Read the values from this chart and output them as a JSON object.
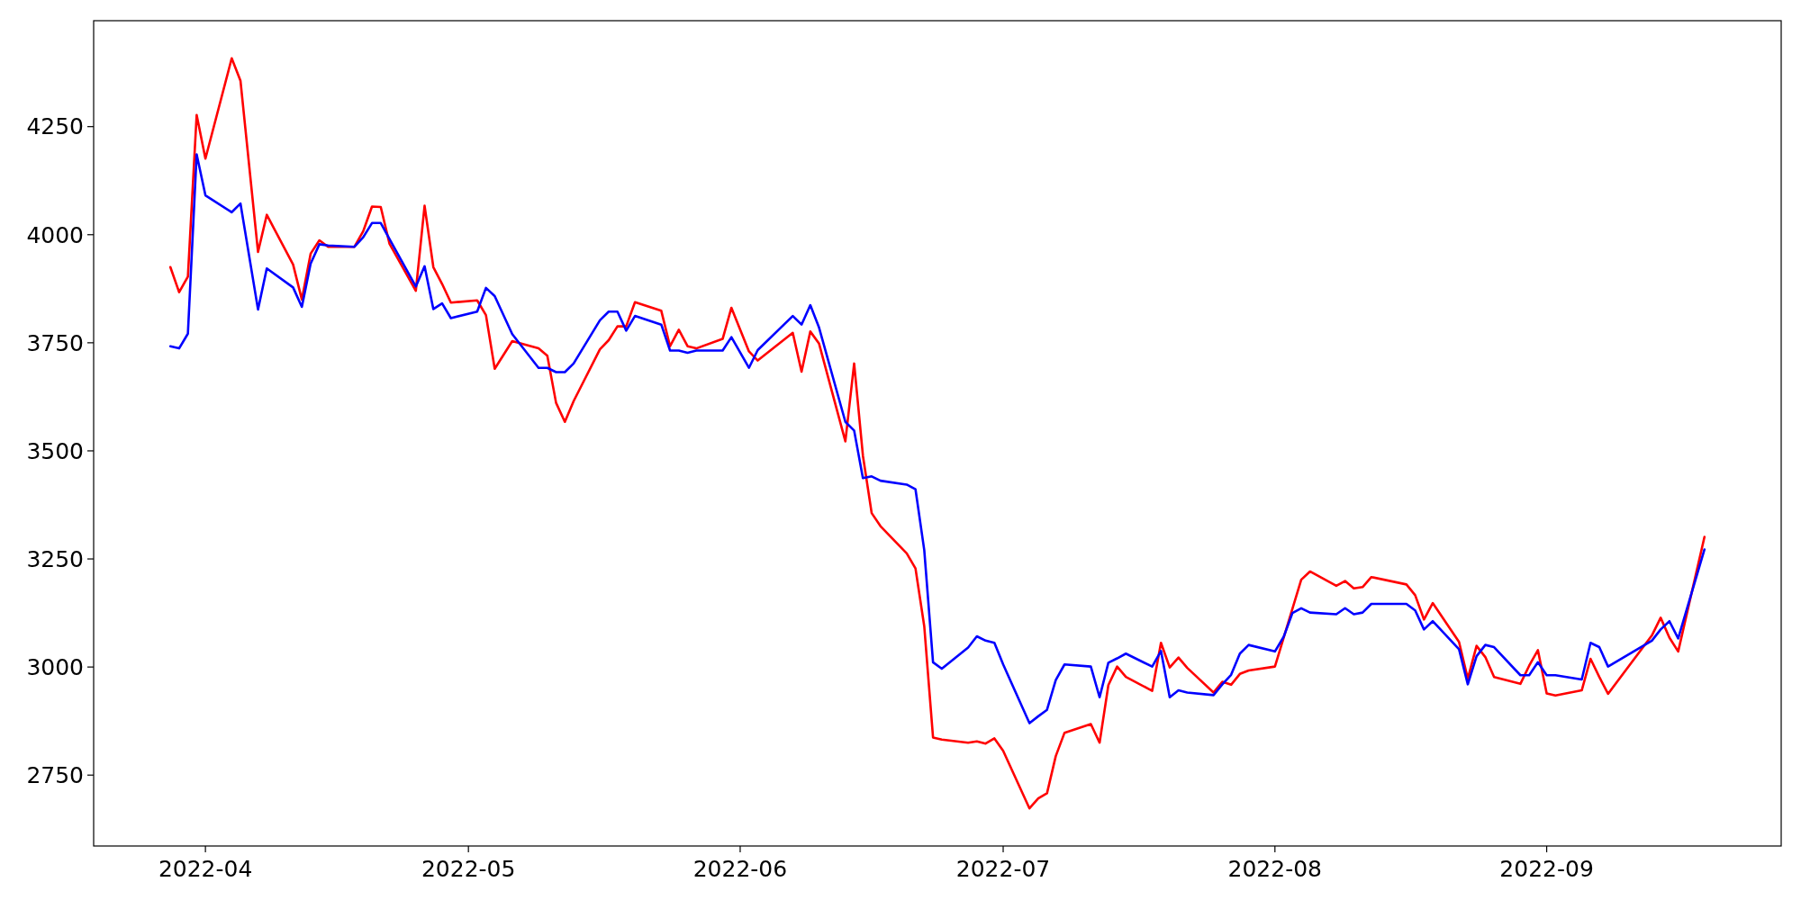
{
  "chart_data": {
    "type": "line",
    "xlim": [
      "2022-03-19T06:00",
      "2022-09-27T18:00"
    ],
    "xticks": [
      "2022-04",
      "2022-05",
      "2022-06",
      "2022-07",
      "2022-08",
      "2022-09"
    ],
    "ylim": [
      2586,
      4495
    ],
    "yticks": [
      2750,
      3000,
      3250,
      3500,
      3750,
      4000,
      4250
    ],
    "grid": false,
    "marker": "none",
    "line_style": "solid",
    "series": [
      {
        "color": "#ff0000",
        "x": [
          "2022-03-28",
          "2022-03-29",
          "2022-03-30",
          "2022-03-31",
          "2022-04-01",
          "2022-04-04",
          "2022-04-05",
          "2022-04-07",
          "2022-04-08",
          "2022-04-11",
          "2022-04-12",
          "2022-04-13",
          "2022-04-14",
          "2022-04-15",
          "2022-04-18",
          "2022-04-19",
          "2022-04-20",
          "2022-04-21",
          "2022-04-22",
          "2022-04-25",
          "2022-04-26",
          "2022-04-27",
          "2022-04-28",
          "2022-04-29",
          "2022-05-02",
          "2022-05-03",
          "2022-05-04",
          "2022-05-06",
          "2022-05-09",
          "2022-05-10",
          "2022-05-11",
          "2022-05-12",
          "2022-05-13",
          "2022-05-16",
          "2022-05-17",
          "2022-05-18",
          "2022-05-19",
          "2022-05-20",
          "2022-05-23",
          "2022-05-24",
          "2022-05-25",
          "2022-05-26",
          "2022-05-27",
          "2022-05-30",
          "2022-05-31",
          "2022-06-02",
          "2022-06-03",
          "2022-06-07",
          "2022-06-08",
          "2022-06-09",
          "2022-06-10",
          "2022-06-13",
          "2022-06-14",
          "2022-06-15",
          "2022-06-16",
          "2022-06-17",
          "2022-06-20",
          "2022-06-21",
          "2022-06-22",
          "2022-06-23",
          "2022-06-24",
          "2022-06-27",
          "2022-06-28",
          "2022-06-29",
          "2022-06-30",
          "2022-07-01",
          "2022-07-04",
          "2022-07-05",
          "2022-07-06",
          "2022-07-07",
          "2022-07-08",
          "2022-07-11",
          "2022-07-12",
          "2022-07-13",
          "2022-07-14",
          "2022-07-15",
          "2022-07-18",
          "2022-07-19",
          "2022-07-20",
          "2022-07-21",
          "2022-07-22",
          "2022-07-25",
          "2022-07-26",
          "2022-07-27",
          "2022-07-28",
          "2022-07-29",
          "2022-08-01",
          "2022-08-04",
          "2022-08-05",
          "2022-08-08",
          "2022-08-09",
          "2022-08-10",
          "2022-08-11",
          "2022-08-12",
          "2022-08-16",
          "2022-08-17",
          "2022-08-18",
          "2022-08-19",
          "2022-08-22",
          "2022-08-23",
          "2022-08-24",
          "2022-08-25",
          "2022-08-26",
          "2022-08-29",
          "2022-08-30",
          "2022-08-31",
          "2022-09-01",
          "2022-09-02",
          "2022-09-05",
          "2022-09-06",
          "2022-09-07",
          "2022-09-08",
          "2022-09-13",
          "2022-09-14",
          "2022-09-15",
          "2022-09-16",
          "2022-09-19"
        ],
        "values": [
          3925,
          3867,
          3903,
          4277,
          4176,
          4408,
          4356,
          3960,
          4046,
          3931,
          3850,
          3956,
          3987,
          3972,
          3972,
          4008,
          4065,
          4064,
          3979,
          3870,
          4067,
          3925,
          3886,
          3843,
          3848,
          3814,
          3690,
          3754,
          3737,
          3720,
          3611,
          3567,
          3615,
          3735,
          3756,
          3788,
          3788,
          3844,
          3824,
          3742,
          3780,
          3742,
          3737,
          3759,
          3831,
          3730,
          3709,
          3773,
          3683,
          3776,
          3748,
          3522,
          3702,
          3489,
          3356,
          3326,
          3263,
          3228,
          3094,
          2837,
          2832,
          2825,
          2828,
          2823,
          2835,
          2806,
          2673,
          2696,
          2708,
          2794,
          2848,
          2868,
          2825,
          2958,
          3001,
          2977,
          2945,
          3056,
          2999,
          3022,
          2998,
          2941,
          2966,
          2959,
          2984,
          2992,
          3001,
          3202,
          3221,
          3188,
          3199,
          3182,
          3185,
          3208,
          3191,
          3166,
          3110,
          3148,
          3058,
          2973,
          3049,
          3023,
          2977,
          2961,
          3003,
          3039,
          2939,
          2934,
          2946,
          3019,
          2977,
          2938,
          3073,
          3114,
          3068,
          3036,
          3301
        ]
      },
      {
        "color": "#0000ff",
        "x": [
          "2022-03-28",
          "2022-03-29",
          "2022-03-30",
          "2022-03-31",
          "2022-04-01",
          "2022-04-04",
          "2022-04-05",
          "2022-04-07",
          "2022-04-08",
          "2022-04-11",
          "2022-04-12",
          "2022-04-13",
          "2022-04-14",
          "2022-04-15",
          "2022-04-18",
          "2022-04-19",
          "2022-04-20",
          "2022-04-21",
          "2022-04-22",
          "2022-04-25",
          "2022-04-26",
          "2022-04-27",
          "2022-04-28",
          "2022-04-29",
          "2022-05-02",
          "2022-05-03",
          "2022-05-04",
          "2022-05-06",
          "2022-05-09",
          "2022-05-10",
          "2022-05-11",
          "2022-05-12",
          "2022-05-13",
          "2022-05-16",
          "2022-05-17",
          "2022-05-18",
          "2022-05-19",
          "2022-05-20",
          "2022-05-23",
          "2022-05-24",
          "2022-05-25",
          "2022-05-26",
          "2022-05-27",
          "2022-05-30",
          "2022-05-31",
          "2022-06-02",
          "2022-06-03",
          "2022-06-07",
          "2022-06-08",
          "2022-06-09",
          "2022-06-10",
          "2022-06-13",
          "2022-06-14",
          "2022-06-15",
          "2022-06-16",
          "2022-06-17",
          "2022-06-20",
          "2022-06-21",
          "2022-06-22",
          "2022-06-23",
          "2022-06-24",
          "2022-06-27",
          "2022-06-28",
          "2022-06-29",
          "2022-06-30",
          "2022-07-01",
          "2022-07-04",
          "2022-07-05",
          "2022-07-06",
          "2022-07-07",
          "2022-07-08",
          "2022-07-11",
          "2022-07-12",
          "2022-07-13",
          "2022-07-14",
          "2022-07-15",
          "2022-07-18",
          "2022-07-19",
          "2022-07-20",
          "2022-07-21",
          "2022-07-22",
          "2022-07-25",
          "2022-07-26",
          "2022-07-27",
          "2022-07-28",
          "2022-07-29",
          "2022-08-01",
          "2022-08-02",
          "2022-08-03",
          "2022-08-04",
          "2022-08-05",
          "2022-08-08",
          "2022-08-09",
          "2022-08-10",
          "2022-08-11",
          "2022-08-12",
          "2022-08-16",
          "2022-08-17",
          "2022-08-18",
          "2022-08-19",
          "2022-08-22",
          "2022-08-23",
          "2022-08-24",
          "2022-08-25",
          "2022-08-26",
          "2022-08-29",
          "2022-08-30",
          "2022-08-31",
          "2022-09-01",
          "2022-09-02",
          "2022-09-05",
          "2022-09-06",
          "2022-09-07",
          "2022-09-08",
          "2022-09-13",
          "2022-09-14",
          "2022-09-15",
          "2022-09-16",
          "2022-09-19"
        ],
        "values": [
          3742,
          3737,
          3771,
          4186,
          4091,
          4052,
          4072,
          3827,
          3922,
          3878,
          3833,
          3933,
          3978,
          3975,
          3972,
          3994,
          4027,
          4027,
          3990,
          3880,
          3927,
          3828,
          3841,
          3807,
          3822,
          3877,
          3858,
          3770,
          3692,
          3692,
          3682,
          3682,
          3702,
          3802,
          3822,
          3822,
          3778,
          3812,
          3792,
          3732,
          3732,
          3727,
          3732,
          3732,
          3763,
          3692,
          3733,
          3812,
          3792,
          3837,
          3785,
          3567,
          3547,
          3437,
          3441,
          3431,
          3422,
          3411,
          3270,
          3011,
          2996,
          3045,
          3071,
          3061,
          3056,
          3006,
          2870,
          2886,
          2901,
          2970,
          3006,
          3001,
          2930,
          3010,
          3020,
          3031,
          3001,
          3037,
          2930,
          2946,
          2941,
          2935,
          2960,
          2982,
          3031,
          3051,
          3036,
          3070,
          3125,
          3136,
          3126,
          3122,
          3136,
          3122,
          3126,
          3146,
          3146,
          3131,
          3087,
          3106,
          3041,
          2960,
          3025,
          3051,
          3046,
          2981,
          2981,
          3011,
          2981,
          2981,
          2971,
          3056,
          3046,
          3001,
          3061,
          3087,
          3106,
          3066,
          3272
        ]
      }
    ]
  }
}
